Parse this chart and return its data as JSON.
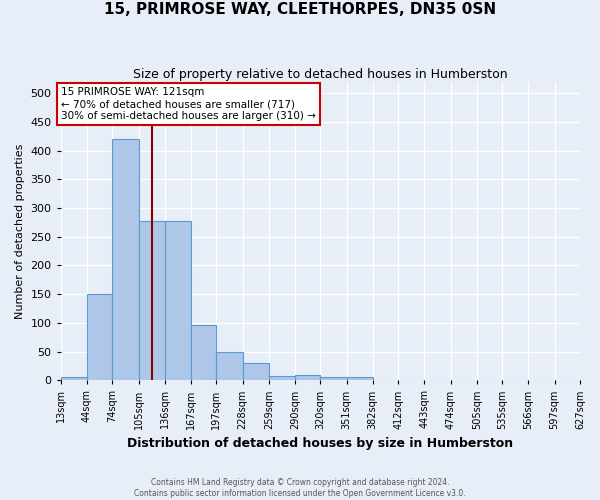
{
  "title": "15, PRIMROSE WAY, CLEETHORPES, DN35 0SN",
  "subtitle": "Size of property relative to detached houses in Humberston",
  "xlabel": "Distribution of detached houses by size in Humberston",
  "ylabel": "Number of detached properties",
  "bin_labels": [
    "13sqm",
    "44sqm",
    "74sqm",
    "105sqm",
    "136sqm",
    "167sqm",
    "197sqm",
    "228sqm",
    "259sqm",
    "290sqm",
    "320sqm",
    "351sqm",
    "382sqm",
    "412sqm",
    "443sqm",
    "474sqm",
    "505sqm",
    "535sqm",
    "566sqm",
    "597sqm",
    "627sqm"
  ],
  "bin_edges": [
    13,
    44,
    74,
    105,
    136,
    167,
    197,
    228,
    259,
    290,
    320,
    351,
    382,
    412,
    443,
    474,
    505,
    535,
    566,
    597,
    627
  ],
  "bar_heights": [
    5,
    150,
    420,
    278,
    278,
    96,
    50,
    30,
    8,
    10,
    5,
    5,
    0,
    0,
    0,
    0,
    0,
    0,
    0,
    0
  ],
  "bar_color": "#aec6e8",
  "bar_edge_color": "#5b9bd5",
  "vline_x": 121,
  "vline_color": "#8b0000",
  "ylim": [
    0,
    520
  ],
  "yticks": [
    0,
    50,
    100,
    150,
    200,
    250,
    300,
    350,
    400,
    450,
    500
  ],
  "annotation_text": "15 PRIMROSE WAY: 121sqm\n← 70% of detached houses are smaller (717)\n30% of semi-detached houses are larger (310) →",
  "annotation_box_color": "#ffffff",
  "annotation_box_edge_color": "#cc0000",
  "bg_color": "#e8eef8",
  "grid_color": "#ffffff",
  "footer_line1": "Contains HM Land Registry data © Crown copyright and database right 2024.",
  "footer_line2": "Contains public sector information licensed under the Open Government Licence v3.0."
}
